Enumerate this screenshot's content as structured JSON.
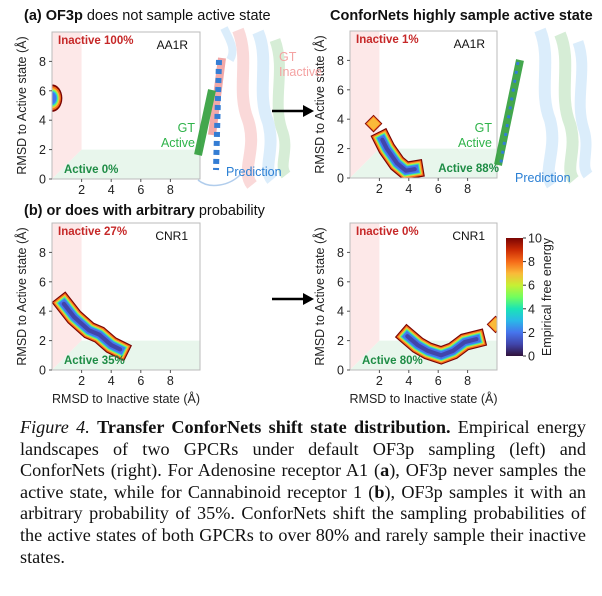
{
  "panel_titles": {
    "a_left_prefix": "(a) ",
    "a_left_bold": "OF3p",
    "a_left_rest": " does not sample active state",
    "a_right": "ConforNets highly sample active state",
    "b_left_prefix": "(b) or does with ",
    "b_left_bold": "arbitrary",
    "b_left_rest": " probability"
  },
  "protein_labels": {
    "gt_inactive": [
      "GT",
      "Inactive"
    ],
    "gt_active": [
      "GT",
      "Active"
    ],
    "prediction": "Prediction"
  },
  "colors": {
    "inactive_region": "#fde8e8",
    "active_region": "#e8f6ec",
    "inactive_text": "#c62828",
    "active_text": "#1e8c45",
    "gt_inactive": "#f4a3a3",
    "gt_active": "#2f9e3a",
    "prediction": "#2a7fd4"
  },
  "chart_data": [
    {
      "type": "heatmap",
      "id": "aa1r-of3p",
      "protein": "AA1R",
      "method": "OF3p",
      "xlabel": "",
      "ylabel": "RMSD to Active state (Å)",
      "xlim": [
        0,
        10
      ],
      "ylim": [
        0,
        10
      ],
      "xticks": [
        2,
        4,
        6,
        8
      ],
      "yticks": [
        0,
        2,
        4,
        6,
        8
      ],
      "inactive_label": "Inactive 100%",
      "active_label": "Active 0%",
      "regions": [
        {
          "x": [
            0,
            2.0
          ],
          "y": [
            0,
            6.0
          ],
          "z": [
            1,
            3,
            6,
            9
          ]
        }
      ]
    },
    {
      "type": "heatmap",
      "id": "aa1r-confornets",
      "protein": "AA1R",
      "method": "ConforNets",
      "xlabel": "",
      "ylabel": "RMSD to Active state (Å)",
      "xlim": [
        0,
        10
      ],
      "ylim": [
        0,
        10
      ],
      "xticks": [
        2,
        4,
        6,
        8
      ],
      "yticks": [
        0,
        2,
        4,
        6,
        8
      ],
      "inactive_label": "Inactive 1%",
      "active_label": "Active 88%",
      "blobs": [
        {
          "points": [
            [
              1.6,
              3.7
            ]
          ],
          "min": 7
        },
        {
          "points": [
            [
              2.2,
              2.6
            ],
            [
              2.5,
              2.0
            ],
            [
              3.2,
              1.0
            ],
            [
              3.8,
              0.5
            ],
            [
              4.4,
              0.6
            ]
          ],
          "min": 0.5
        }
      ]
    },
    {
      "type": "heatmap",
      "id": "cnr1-of3p",
      "protein": "CNR1",
      "method": "OF3p",
      "xlabel": "RMSD to Inactive state (Å)",
      "ylabel": "RMSD to Active state (Å)",
      "xlim": [
        0,
        10
      ],
      "ylim": [
        0,
        10
      ],
      "xticks": [
        2,
        4,
        6,
        8
      ],
      "yticks": [
        0,
        2,
        4,
        6,
        8
      ],
      "inactive_label": "Inactive 27%",
      "active_label": "Active 35%",
      "blobs": [
        {
          "points": [
            [
              0.8,
              4.5
            ],
            [
              1.5,
              3.6
            ],
            [
              2.5,
              2.7
            ],
            [
              3.2,
              2.4
            ],
            [
              4.0,
              1.7
            ],
            [
              4.6,
              1.4
            ]
          ],
          "min": 0.6
        }
      ]
    },
    {
      "type": "heatmap",
      "id": "cnr1-confornets",
      "protein": "CNR1",
      "method": "ConforNets",
      "xlabel": "RMSD to Inactive state (Å)",
      "ylabel": "RMSD to Active state (Å)",
      "xlim": [
        0,
        10
      ],
      "ylim": [
        0,
        10
      ],
      "xticks": [
        2,
        4,
        6,
        8
      ],
      "yticks": [
        0,
        2,
        4,
        6,
        8
      ],
      "inactive_label": "Inactive 0%",
      "active_label": "Active 80%",
      "blobs": [
        {
          "points": [
            [
              3.9,
              2.3
            ],
            [
              4.6,
              1.7
            ],
            [
              5.3,
              1.3
            ],
            [
              6.2,
              1.0
            ],
            [
              7.0,
              1.3
            ],
            [
              7.8,
              1.9
            ],
            [
              8.6,
              2.1
            ]
          ],
          "min": 0.1
        },
        {
          "points": [
            [
              9.9,
              3.1
            ]
          ],
          "min": 6
        }
      ],
      "colorbar": {
        "label": "Empirical free energy",
        "range": [
          0,
          10
        ],
        "ticks": [
          0,
          2,
          4,
          6,
          8,
          10
        ],
        "colormap": "turbo"
      }
    }
  ],
  "caption": {
    "figure_label": "Figure 4.",
    "bold_title": "Transfer ConforNets shift state distribution.",
    "text_1": " Empirical energy landscapes of two GPCRs under default OF3p sampling (left) and ConforNets (right). For Adenosine receptor A1 (",
    "bold_a": "a",
    "text_2": "), OF3p never samples the active state, while for Cannabinoid receptor 1 (",
    "bold_b": "b",
    "text_3": "), OF3p samples it with an arbitrary probability of 35%. ConforNets shift the sampling probabilities of the active states of both GPCRs to over 80% and rarely sample their inactive states."
  }
}
